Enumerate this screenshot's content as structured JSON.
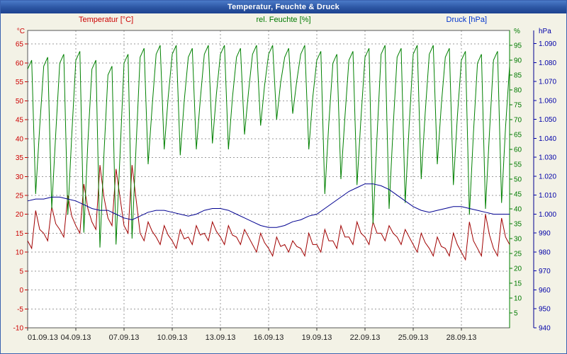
{
  "window": {
    "title": "Temperatur, Feuchte & Druck"
  },
  "chart_data": {
    "type": "line",
    "title": "Temperatur, Feuchte & Druck",
    "grid": true,
    "legend_position": "top",
    "x_axis": {
      "range_days": [
        0,
        30
      ],
      "tick_days": [
        0,
        3,
        6,
        9,
        12,
        15,
        18,
        21,
        24,
        27
      ],
      "tick_labels": [
        "01.09.13",
        "04.09.13",
        "07.09.13",
        "10.09.13",
        "13.09.13",
        "16.09.13",
        "19.09.13",
        "22.09.13",
        "25.09.13",
        "28.09.13"
      ]
    },
    "axes": {
      "temperature": {
        "label": "Temperatur [°C]",
        "unit": "°C",
        "side": "left",
        "color": "#cc0000",
        "range": [
          -10,
          68.6
        ],
        "tick_values": [
          65,
          60,
          55,
          50,
          45,
          40,
          35,
          30,
          25,
          20,
          15,
          10,
          5,
          0,
          -5,
          -10
        ],
        "tick_labels": [
          "65",
          "60",
          "55",
          "50",
          "45",
          "40",
          "35",
          "30",
          "25",
          "20",
          "15",
          "10",
          "5",
          "0",
          "-5",
          "-10"
        ]
      },
      "humidity": {
        "label": "rel. Feuchte [%]",
        "unit": "%",
        "side": "right-inner",
        "color": "#007a00",
        "range": [
          0,
          100
        ],
        "tick_values": [
          95,
          90,
          85,
          80,
          75,
          70,
          65,
          60,
          55,
          50,
          45,
          40,
          35,
          30,
          25,
          20,
          15,
          10,
          5
        ],
        "tick_labels": [
          "95",
          "90",
          "85",
          "80",
          "75",
          "70",
          "65",
          "60",
          "55",
          "50",
          "45",
          "40",
          "35",
          "30",
          "25",
          "20",
          "15",
          "10",
          "5"
        ]
      },
      "pressure": {
        "label": "Druck [hPa]",
        "unit": "hPa",
        "side": "right-outer",
        "color": "#0000a8",
        "range": [
          940,
          1097
        ],
        "tick_values": [
          1090,
          1080,
          1070,
          1060,
          1050,
          1040,
          1030,
          1020,
          1010,
          1000,
          990,
          980,
          970,
          960,
          950,
          940
        ],
        "tick_labels": [
          "1.090",
          "1.080",
          "1.070",
          "1.060",
          "1.050",
          "1.040",
          "1.030",
          "1.020",
          "1.010",
          "1.000",
          "990",
          "980",
          "970",
          "960",
          "950",
          "940"
        ]
      }
    },
    "series": [
      {
        "name": "temperature",
        "axis": "temperature",
        "color": "#a00000",
        "step_days": 0.25,
        "values": [
          13,
          11,
          21,
          16,
          15,
          13,
          22,
          17.5,
          16,
          14,
          25,
          19.5,
          17,
          15,
          28,
          21.5,
          18,
          16,
          33,
          24.5,
          19,
          17,
          32,
          24.5,
          17,
          15,
          33,
          24,
          15,
          13,
          18,
          15.5,
          14,
          12,
          17,
          14.5,
          13,
          11,
          16,
          13.5,
          14,
          12,
          17,
          14.5,
          15,
          13,
          18,
          15.5,
          14,
          12,
          17,
          14.5,
          14,
          12,
          16,
          14,
          12,
          10,
          15,
          12.5,
          11,
          9,
          14,
          11.5,
          12,
          10,
          13,
          11.5,
          11,
          9,
          15,
          12,
          12,
          10,
          16,
          13,
          13,
          11,
          17,
          14,
          14,
          12,
          18,
          15,
          14,
          12,
          18,
          15,
          15,
          13,
          17,
          15,
          14,
          12,
          16,
          14,
          12,
          10,
          15,
          12.5,
          11,
          9,
          14,
          11.5,
          11,
          9,
          15,
          12,
          10,
          8,
          18,
          13,
          11,
          9,
          20,
          14.5,
          11,
          9,
          19,
          14,
          12
        ]
      },
      {
        "name": "humidity",
        "axis": "humidity",
        "color": "#008000",
        "step_days": 0.25,
        "values": [
          87,
          90,
          45,
          67.5,
          88,
          91,
          40,
          65.5,
          89,
          92,
          38,
          65,
          90,
          93,
          32,
          62.5,
          87,
          90,
          27,
          58.5,
          85,
          88,
          28,
          58,
          89,
          92,
          30,
          61,
          91,
          94,
          55,
          74.5,
          92,
          95,
          60,
          77.5,
          92,
          95,
          58,
          76.5,
          91,
          94,
          60,
          77,
          92,
          95,
          62,
          78.5,
          92,
          95,
          60,
          77.5,
          91,
          94,
          65,
          79.5,
          92,
          95,
          68,
          81.5,
          92,
          95,
          70,
          82.5,
          91,
          94,
          72,
          83,
          92,
          95,
          60,
          77.5,
          90,
          93,
          45,
          69,
          89,
          92,
          50,
          71,
          90,
          93,
          48,
          70.5,
          91,
          94,
          35,
          64.5,
          92,
          95,
          40,
          67.5,
          91,
          94,
          42,
          68,
          92,
          95,
          50,
          72.5,
          92,
          95,
          55,
          75,
          91,
          94,
          48,
          71,
          90,
          93,
          38,
          65.5,
          89,
          92,
          40,
          66,
          90,
          93,
          42,
          67.5,
          88
        ]
      },
      {
        "name": "pressure",
        "axis": "pressure",
        "color": "#000090",
        "step_days": 0.5,
        "values": [
          1007,
          1008,
          1008,
          1009,
          1009,
          1008,
          1007,
          1005,
          1003,
          1002,
          1002,
          1000,
          998,
          997,
          999,
          1001,
          1002,
          1002,
          1001,
          1000,
          999,
          1000,
          1002,
          1003,
          1003,
          1002,
          1000,
          998,
          996,
          994,
          993,
          993,
          994,
          996,
          997,
          999,
          1000,
          1003,
          1006,
          1009,
          1012,
          1014,
          1016,
          1016,
          1015,
          1013,
          1010,
          1007,
          1004,
          1002,
          1001,
          1002,
          1003,
          1004,
          1004,
          1003,
          1002,
          1001,
          1000,
          1000,
          1000
        ]
      }
    ]
  }
}
